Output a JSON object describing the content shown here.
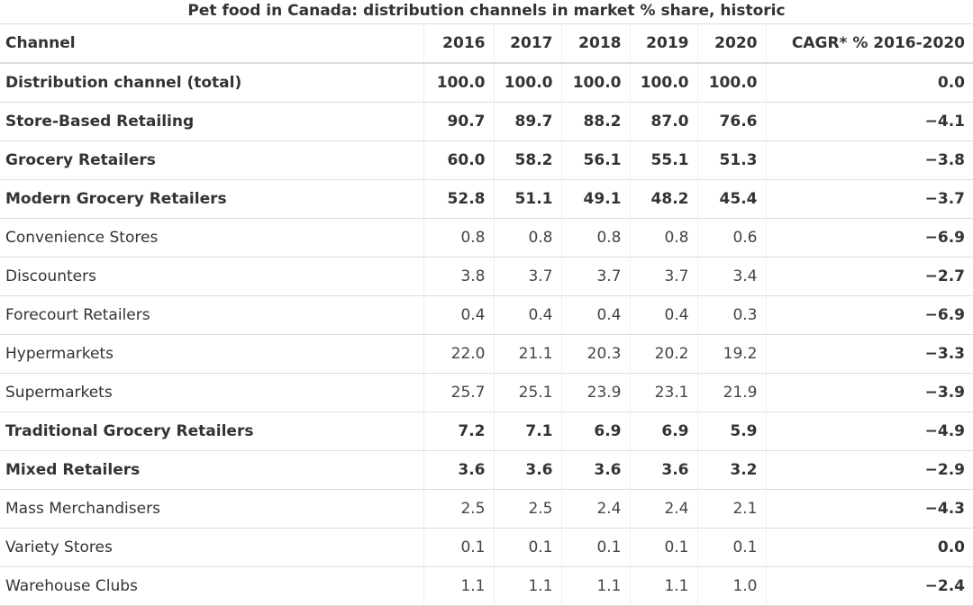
{
  "title": "Pet food in Canada: distribution channels in market % share, historic",
  "table": {
    "header": [
      "Channel",
      "2016",
      "2017",
      "2018",
      "2019",
      "2020",
      "CAGR* % 2016-2020"
    ],
    "rows": [
      [
        "Distribution channel (total)",
        "100.0",
        "100.0",
        "100.0",
        "100.0",
        "100.0",
        "0.0"
      ],
      [
        "Store-Based Retailing",
        "90.7",
        "89.7",
        "88.2",
        "87.0",
        "76.6",
        "−4.1"
      ],
      [
        "Grocery Retailers",
        "60.0",
        "58.2",
        "56.1",
        "55.1",
        "51.3",
        "−3.8"
      ],
      [
        "Modern Grocery Retailers",
        "52.8",
        "51.1",
        "49.1",
        "48.2",
        "45.4",
        "−3.7"
      ],
      [
        "Convenience Stores",
        "0.8",
        "0.8",
        "0.8",
        "0.8",
        "0.6",
        "−6.9"
      ],
      [
        "Discounters",
        "3.8",
        "3.7",
        "3.7",
        "3.7",
        "3.4",
        "−2.7"
      ],
      [
        "Forecourt Retailers",
        "0.4",
        "0.4",
        "0.4",
        "0.4",
        "0.3",
        "−6.9"
      ],
      [
        "Hypermarkets",
        "22.0",
        "21.1",
        "20.3",
        "20.2",
        "19.2",
        "−3.3"
      ],
      [
        "Supermarkets",
        "25.7",
        "25.1",
        "23.9",
        "23.1",
        "21.9",
        "−3.9"
      ],
      [
        "Traditional Grocery Retailers",
        "7.2",
        "7.1",
        "6.9",
        "6.9",
        "5.9",
        "−4.9"
      ],
      [
        "Mixed Retailers",
        "3.6",
        "3.6",
        "3.6",
        "3.6",
        "3.2",
        "−2.9"
      ],
      [
        "Mass Merchandisers",
        "2.5",
        "2.5",
        "2.4",
        "2.4",
        "2.1",
        "−4.3"
      ],
      [
        "Variety Stores",
        "0.1",
        "0.1",
        "0.1",
        "0.1",
        "0.1",
        "0.0"
      ],
      [
        "Warehouse Clubs",
        "1.1",
        "1.1",
        "1.1",
        "1.1",
        "1.0",
        "−2.4"
      ]
    ]
  }
}
